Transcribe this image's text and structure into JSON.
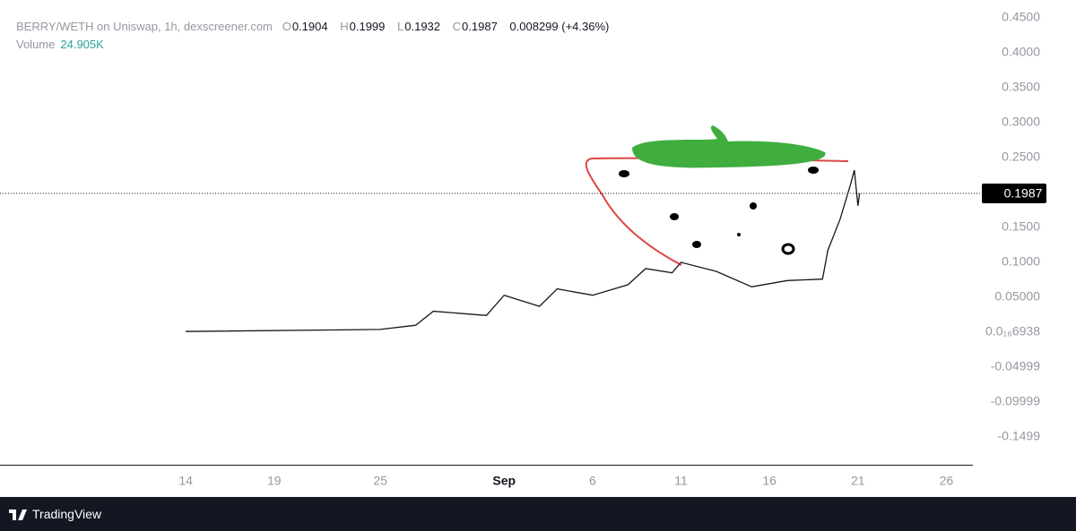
{
  "header": {
    "pair": "BERRY/WETH on Uniswap, 1h, dexscreener.com",
    "ohlc": [
      {
        "key": "O",
        "value": "0.1904"
      },
      {
        "key": "H",
        "value": "0.1999"
      },
      {
        "key": "L",
        "value": "0.1932"
      },
      {
        "key": "C",
        "value": "0.1987"
      }
    ],
    "change": "0.008299 (+4.36%)",
    "volume_label": "Volume",
    "volume_value": "24.905K"
  },
  "footer": "TradingView",
  "chart_data": {
    "type": "line",
    "color": "#131722",
    "series": [
      {
        "name": "BERRY/WETH",
        "color": "#131722",
        "x": [
          14,
          25,
          27,
          28,
          31,
          32,
          34,
          35,
          37,
          39,
          40,
          41.5,
          42,
          44,
          46,
          48,
          50,
          50.3,
          51,
          51.6,
          51.8,
          52,
          52.1
        ],
        "values": [
          0.001,
          0.004,
          0.01,
          0.03,
          0.024,
          0.053,
          0.037,
          0.062,
          0.053,
          0.068,
          0.091,
          0.085,
          0.1,
          0.087,
          0.065,
          0.074,
          0.076,
          0.117,
          0.162,
          0.213,
          0.232,
          0.181,
          0.1987
        ]
      }
    ],
    "last_price": {
      "value": 0.1987,
      "label": "0.1987"
    },
    "xlim": [
      3.5,
      58.5
    ],
    "xticks": [
      14,
      19,
      25,
      {
        "value": 32,
        "label": "Sep"
      },
      {
        "value": 37,
        "label": "6"
      },
      {
        "value": 42,
        "label": "11"
      },
      {
        "value": 47,
        "label": "16"
      },
      {
        "value": 52,
        "label": "21"
      },
      {
        "value": 57,
        "label": "26"
      }
    ],
    "ylim": [
      -0.191,
      0.4756
    ],
    "yticks": [
      {
        "value": 0.45,
        "label": "0.4500"
      },
      {
        "value": 0.4,
        "label": "0.4000"
      },
      {
        "value": 0.35,
        "label": "0.3500"
      },
      {
        "value": 0.3,
        "label": "0.3000"
      },
      {
        "value": 0.25,
        "label": "0.2500"
      },
      {
        "value": 0.15,
        "label": "0.1500"
      },
      {
        "value": 0.1,
        "label": "0.1000"
      },
      {
        "value": 0.05,
        "label": "0.05000"
      },
      {
        "value": 6.938e-17,
        "label": "0.0₁₆6938"
      },
      {
        "value": -0.04999,
        "label": "-0.04999"
      },
      {
        "value": -0.09999,
        "label": "-0.09999"
      },
      {
        "value": -0.1499,
        "label": "-0.1499"
      }
    ]
  }
}
